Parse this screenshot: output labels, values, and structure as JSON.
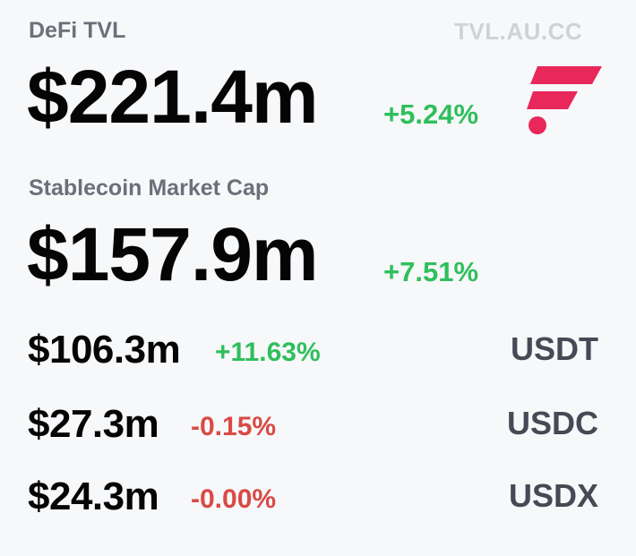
{
  "header": {
    "tvl_label": "DeFi TVL",
    "brand_url": "TVL.AU.CC"
  },
  "tvl": {
    "value": "$221.4m",
    "change": "+5.24%"
  },
  "stablecoin": {
    "label": "Stablecoin Market Cap",
    "value": "$157.9m",
    "change": "+7.51%"
  },
  "coins": [
    {
      "amount": "$106.3m",
      "change": "+11.63%",
      "symbol": "USDT",
      "trend": "up"
    },
    {
      "amount": "$27.3m",
      "change": "-0.15%",
      "symbol": "USDC",
      "trend": "down"
    },
    {
      "amount": "$24.3m",
      "change": "-0.00%",
      "symbol": "USDX",
      "trend": "down"
    }
  ],
  "logo": {
    "icon": "flare-logo-icon",
    "color": "#e8285a"
  },
  "colors": {
    "positive": "#2fbf5b",
    "negative": "#d94a45",
    "label": "#6b7079",
    "brand": "#cfd2d7"
  }
}
